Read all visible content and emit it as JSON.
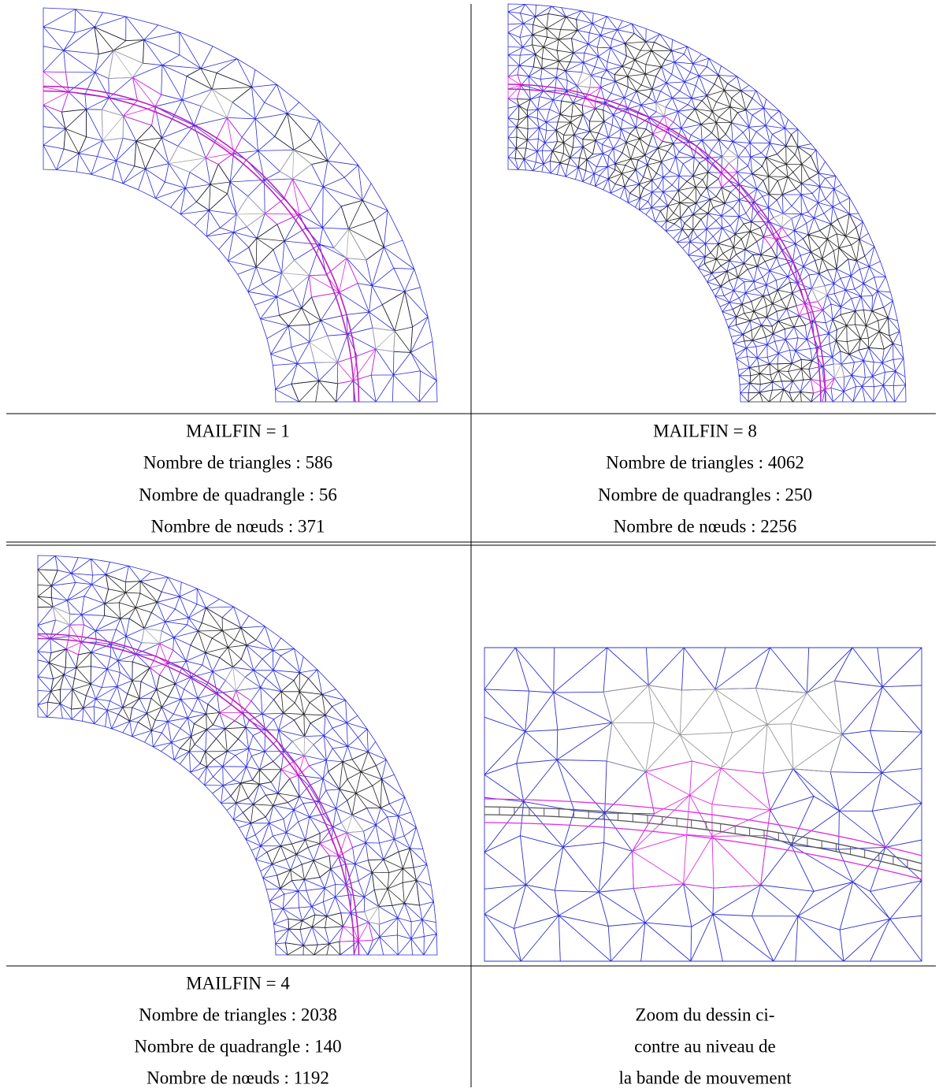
{
  "panels": [
    {
      "caption": [
        "MAILFIN = 1",
        "Nombre de triangles : 586",
        "Nombre de quadrangle : 56",
        "Nombre de nœuds : 371"
      ]
    },
    {
      "caption": [
        "MAILFIN = 8",
        "Nombre de triangles : 4062",
        "Nombre de quadrangles : 250",
        "Nombre de nœuds : 2256"
      ]
    },
    {
      "caption": [
        "MAILFIN = 4",
        "Nombre de triangles : 2038",
        "Nombre de quadrangle : 140",
        "Nombre de nœuds : 1192"
      ]
    },
    {
      "caption": [
        "Zoom du dessin ci-",
        "contre au niveau de",
        "la bande de mouvement"
      ]
    }
  ]
}
